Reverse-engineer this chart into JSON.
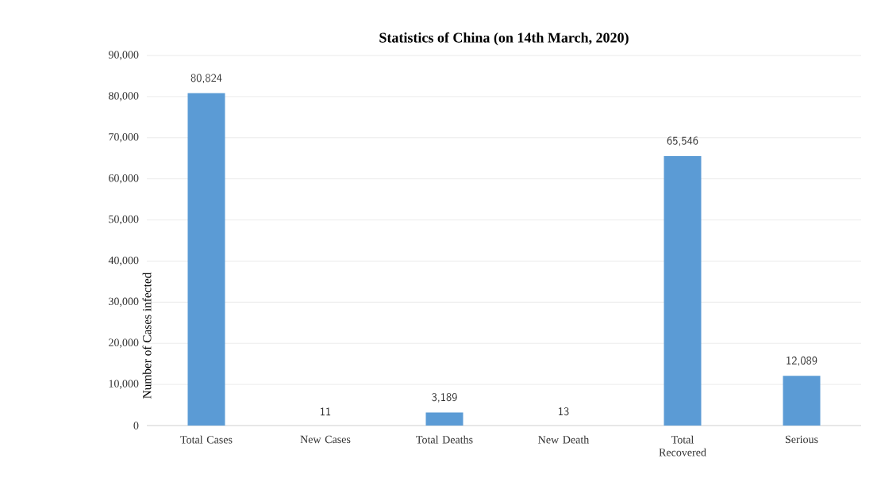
{
  "chart_data": {
    "type": "bar",
    "title": "Statistics of China (on 14th March, 2020)",
    "ylabel": "Number of Cases infected",
    "categories": [
      "Total Cases",
      "New Cases",
      "Total Deaths",
      "New Death",
      "Total Recovered",
      "Serious"
    ],
    "values": [
      80824,
      11,
      3189,
      13,
      65546,
      12089
    ],
    "value_labels": [
      "80,824",
      "11",
      "3,189",
      "13",
      "65,546",
      "12,089"
    ],
    "color": "#5b9bd5",
    "ylim": [
      0,
      90000
    ],
    "yticks": [
      0,
      {
        "value": 10000,
        "label": "10,000"
      },
      {
        "value": 20000,
        "label": "20,000"
      },
      {
        "value": 30000,
        "label": "30,000"
      },
      {
        "value": 40000,
        "label": "40,000"
      },
      {
        "value": 50000,
        "label": "50,000"
      },
      {
        "value": 60000,
        "label": "60,000"
      },
      {
        "value": 70000,
        "label": "70,000"
      },
      {
        "value": 80000,
        "label": "80,000"
      },
      {
        "value": 90000,
        "label": "90,000"
      }
    ],
    "grid": "y"
  }
}
